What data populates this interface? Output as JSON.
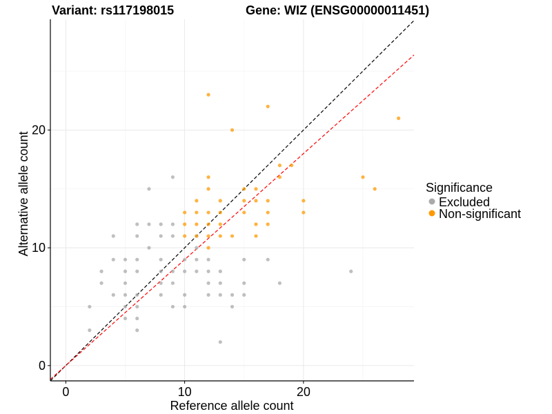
{
  "chart_data": {
    "type": "scatter",
    "title_left": "Variant: rs117198015",
    "title_right": "Gene: WIZ (ENSG00000011451)",
    "xlabel": "Reference allele count",
    "ylabel": "Alternative allele count",
    "xlim": [
      -1.3,
      29.3
    ],
    "ylim": [
      -1.3,
      29.4
    ],
    "xticks": [
      0,
      10,
      20
    ],
    "yticks": [
      0,
      10,
      20
    ],
    "grid": true,
    "reference_lines": [
      {
        "slope": 1.0,
        "intercept": 0,
        "color": "#000000",
        "style": "dashed"
      },
      {
        "slope": 0.9,
        "intercept": 0,
        "color": "#ff0000",
        "style": "dashed"
      }
    ],
    "legend": {
      "title": "Significance",
      "placement": "right"
    },
    "series": [
      {
        "name": "Excluded",
        "color": "#aaaaaa",
        "points": [
          [
            2,
            3
          ],
          [
            2,
            5
          ],
          [
            3,
            7
          ],
          [
            3,
            8
          ],
          [
            4,
            6
          ],
          [
            4,
            9
          ],
          [
            4,
            11
          ],
          [
            5,
            4
          ],
          [
            5,
            5
          ],
          [
            5,
            6
          ],
          [
            5,
            7
          ],
          [
            5,
            8
          ],
          [
            5,
            9
          ],
          [
            6,
            3
          ],
          [
            6,
            4
          ],
          [
            6,
            5
          ],
          [
            6,
            6
          ],
          [
            6,
            8
          ],
          [
            6,
            9
          ],
          [
            6,
            11
          ],
          [
            6,
            12
          ],
          [
            7,
            10
          ],
          [
            7,
            12
          ],
          [
            7,
            15
          ],
          [
            8,
            6
          ],
          [
            8,
            7
          ],
          [
            8,
            8
          ],
          [
            8,
            9
          ],
          [
            8,
            11
          ],
          [
            8,
            12
          ],
          [
            9,
            5
          ],
          [
            9,
            7
          ],
          [
            9,
            8
          ],
          [
            9,
            11
          ],
          [
            9,
            12
          ],
          [
            9,
            16
          ],
          [
            10,
            5
          ],
          [
            10,
            6
          ],
          [
            10,
            8
          ],
          [
            10,
            9
          ],
          [
            11,
            8
          ],
          [
            11,
            9
          ],
          [
            11,
            10
          ],
          [
            11,
            11
          ],
          [
            12,
            6
          ],
          [
            12,
            7
          ],
          [
            12,
            8
          ],
          [
            12,
            9
          ],
          [
            13,
            2
          ],
          [
            13,
            6
          ],
          [
            13,
            7
          ],
          [
            13,
            8
          ],
          [
            14,
            5
          ],
          [
            14,
            6
          ],
          [
            15,
            6
          ],
          [
            15,
            7
          ],
          [
            15,
            9
          ],
          [
            17,
            9
          ],
          [
            18,
            7
          ],
          [
            24,
            8
          ]
        ]
      },
      {
        "name": "Non-significant",
        "color": "#ff9900",
        "points": [
          [
            10,
            11
          ],
          [
            10,
            12
          ],
          [
            10,
            13
          ],
          [
            11,
            11
          ],
          [
            11,
            12
          ],
          [
            11,
            13
          ],
          [
            11,
            14
          ],
          [
            12,
            10
          ],
          [
            12,
            11
          ],
          [
            12,
            12
          ],
          [
            12,
            13
          ],
          [
            12,
            15
          ],
          [
            12,
            16
          ],
          [
            12,
            23
          ],
          [
            13,
            11
          ],
          [
            13,
            12
          ],
          [
            13,
            13
          ],
          [
            13,
            14
          ],
          [
            14,
            11
          ],
          [
            14,
            20
          ],
          [
            15,
            13
          ],
          [
            15,
            14
          ],
          [
            15,
            15
          ],
          [
            16,
            11
          ],
          [
            16,
            12
          ],
          [
            16,
            14
          ],
          [
            16,
            15
          ],
          [
            17,
            12
          ],
          [
            17,
            13
          ],
          [
            17,
            14
          ],
          [
            17,
            22
          ],
          [
            18,
            16
          ],
          [
            18,
            17
          ],
          [
            19,
            17
          ],
          [
            20,
            13
          ],
          [
            20,
            14
          ],
          [
            25,
            16
          ],
          [
            26,
            15
          ],
          [
            28,
            21
          ]
        ]
      }
    ]
  }
}
